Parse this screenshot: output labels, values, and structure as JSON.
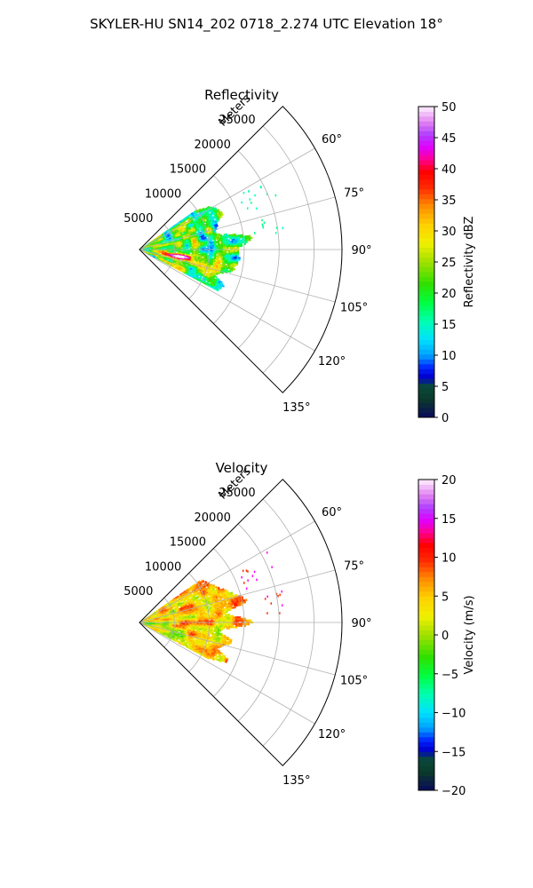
{
  "suptitle": "SKYLER-HU  SN14_202  0718_2.274 UTC Elevation 18°",
  "panels": [
    {
      "title": "Reflectivity",
      "range_label": "Meters",
      "range_ticks": [
        "5000",
        "10000",
        "15000",
        "20000",
        "25000"
      ],
      "angle_ticks": [
        "60°",
        "75°",
        "90°",
        "105°",
        "120°",
        "135°"
      ],
      "colorbar": {
        "label": "Reflectivity dBZ",
        "ticks": [
          "0",
          "5",
          "10",
          "15",
          "20",
          "25",
          "30",
          "35",
          "40",
          "45",
          "50"
        ]
      }
    },
    {
      "title": "Velocity",
      "range_label": "Meters",
      "range_ticks": [
        "5000",
        "10000",
        "15000",
        "20000",
        "25000"
      ],
      "angle_ticks": [
        "60°",
        "75°",
        "90°",
        "105°",
        "120°",
        "135°"
      ],
      "colorbar": {
        "label": "Velocity (m/s)",
        "ticks": [
          "−20",
          "−15",
          "−10",
          "−5",
          "0",
          "5",
          "10",
          "15",
          "20"
        ]
      }
    }
  ],
  "chart_data": [
    {
      "type": "heatmap",
      "projection": "polar-sector",
      "title": "Reflectivity",
      "theta_range_deg": [
        45,
        135
      ],
      "theta_ticks_deg": [
        60,
        75,
        90,
        105,
        120,
        135
      ],
      "r_range_m": [
        0,
        29000
      ],
      "r_ticks_m": [
        5000,
        10000,
        15000,
        20000,
        25000
      ],
      "r_label": "Meters",
      "colorbar_label": "Reflectivity dBZ",
      "vmin": 0,
      "vmax": 50,
      "echo_extent_m": [
        0,
        17500
      ],
      "echo_sector_deg": [
        55,
        118
      ],
      "colors": {
        "low": "#00ffff",
        "mid": "#ffff00",
        "high": "#ff0000",
        "max": "#ff00ff"
      }
    },
    {
      "type": "heatmap",
      "projection": "polar-sector",
      "title": "Velocity",
      "theta_range_deg": [
        45,
        135
      ],
      "theta_ticks_deg": [
        60,
        75,
        90,
        105,
        120,
        135
      ],
      "r_range_m": [
        0,
        29000
      ],
      "r_ticks_m": [
        5000,
        10000,
        15000,
        20000,
        25000
      ],
      "r_label": "Meters",
      "colorbar_label": "Velocity (m/s)",
      "vmin": -20,
      "vmax": 20,
      "echo_extent_m": [
        0,
        17500
      ],
      "echo_sector_deg": [
        55,
        118
      ],
      "colors": {
        "neg": "#00ff00",
        "zero": "#ffff00",
        "pos": "#ff0000",
        "max": "#ff00ff"
      }
    }
  ]
}
